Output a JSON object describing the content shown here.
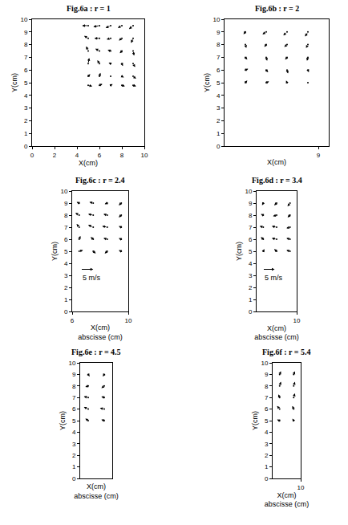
{
  "chart_data": [
    {
      "type": "quiver",
      "title": "Fig.6a : r = 1",
      "xlabel": "X(cm)",
      "ylabel": "Y(cm)",
      "color": "#000000",
      "xlim": [
        0,
        10
      ],
      "xticks": [
        0,
        2,
        4,
        6,
        8,
        10
      ],
      "ylim": [
        0,
        10
      ],
      "yticks": [
        0,
        1,
        2,
        3,
        4,
        5,
        6,
        7,
        8,
        9,
        10
      ],
      "vectors": [
        [
          5,
          9.5,
          -3,
          0
        ],
        [
          6,
          9.5,
          -3,
          -0.5
        ],
        [
          7,
          9.5,
          -2.5,
          -1
        ],
        [
          8,
          9.5,
          -2,
          -1
        ],
        [
          9,
          9.5,
          -2,
          -1.5
        ],
        [
          5,
          8.5,
          -2,
          1
        ],
        [
          6,
          8.5,
          -2.5,
          0
        ],
        [
          7,
          8.5,
          -2,
          -0.5
        ],
        [
          8,
          8.5,
          -1.5,
          -1
        ],
        [
          9,
          8.5,
          -1,
          -2
        ],
        [
          5,
          7.5,
          -1,
          2
        ],
        [
          6,
          7.5,
          -2,
          1
        ],
        [
          7,
          7.5,
          -1.5,
          0.5
        ],
        [
          8,
          7.5,
          -1,
          -1
        ],
        [
          9,
          7.5,
          0.5,
          -2
        ],
        [
          5,
          6.5,
          0.5,
          2.5
        ],
        [
          6,
          6.5,
          -1,
          1.5
        ],
        [
          7,
          6.5,
          -1,
          0.5
        ],
        [
          8,
          6.5,
          0.5,
          -1
        ],
        [
          9,
          6.5,
          1,
          -1.5
        ],
        [
          5,
          5.5,
          1,
          1
        ],
        [
          6,
          5.5,
          0.5,
          1.5
        ],
        [
          7,
          5.5,
          0.5,
          0.5
        ],
        [
          8,
          5.5,
          1,
          -0.5
        ],
        [
          9,
          5.5,
          1.5,
          -1
        ],
        [
          5,
          4.8,
          2,
          -0.5
        ],
        [
          6,
          4.8,
          1.5,
          0.5
        ],
        [
          7,
          4.8,
          1,
          0.5
        ],
        [
          8,
          4.8,
          1.5,
          -0.5
        ],
        [
          9,
          4.8,
          1.5,
          -0.5
        ]
      ]
    },
    {
      "type": "quiver",
      "title": "Fig.6b : r = 2",
      "xlabel": "X(cm)",
      "ylabel": "Y(cm)",
      "color": "#000000",
      "xlim": [
        0,
        10
      ],
      "xticks": [
        9
      ],
      "ylim": [
        0,
        10
      ],
      "yticks": [
        0,
        1,
        2,
        3,
        4,
        5,
        6,
        7,
        8,
        9,
        10
      ],
      "vectors": [
        [
          2,
          9,
          -1,
          -1
        ],
        [
          4,
          9,
          -2,
          -1
        ],
        [
          6,
          9,
          -2,
          -1.5
        ],
        [
          8,
          9,
          -1.5,
          -2
        ],
        [
          2,
          8,
          0.5,
          -1.5
        ],
        [
          4,
          8,
          -1,
          -1
        ],
        [
          6,
          8,
          -1.5,
          -1
        ],
        [
          8,
          8,
          -1,
          -1.5
        ],
        [
          2,
          7,
          1,
          -1
        ],
        [
          4,
          7,
          0.5,
          -1.5
        ],
        [
          6,
          7,
          -1,
          -1
        ],
        [
          8,
          7,
          -0.5,
          -1.5
        ],
        [
          2,
          6,
          1.5,
          0.5
        ],
        [
          4,
          6,
          1,
          -1
        ],
        [
          6,
          6,
          0.5,
          -1.5
        ],
        [
          8,
          6,
          0.5,
          -1
        ],
        [
          2,
          5,
          1,
          1
        ],
        [
          4,
          5,
          1.5,
          0.5
        ],
        [
          6,
          5,
          -0.5,
          1
        ],
        [
          8,
          5,
          0.5,
          -0.5
        ]
      ]
    },
    {
      "type": "quiver",
      "title": "Fig.6c : r = 2.4",
      "xlabel": "X(cm)",
      "xlabel_2": "abscisse (cm)",
      "ylabel": "Y(cm)",
      "color": "#000000",
      "xlim": [
        6,
        10
      ],
      "xticks": [
        6,
        10
      ],
      "ylim": [
        0,
        10
      ],
      "yticks": [
        0,
        1,
        2,
        3,
        4,
        5,
        6,
        7,
        8,
        9,
        10
      ],
      "reference_vector": {
        "value": 5,
        "label": "5 m/s"
      },
      "vectors": [
        [
          6.5,
          9,
          -1,
          0.5
        ],
        [
          7.5,
          9,
          -1.5,
          0.5
        ],
        [
          8.5,
          9,
          -1,
          -0.5
        ],
        [
          9.5,
          9,
          -1,
          -1
        ],
        [
          6.5,
          8,
          -1.5,
          1
        ],
        [
          7.5,
          8,
          -2,
          0.5
        ],
        [
          8.5,
          8,
          -1.5,
          0.5
        ],
        [
          9.5,
          8,
          -1,
          -1
        ],
        [
          6.5,
          7,
          -1,
          1.5
        ],
        [
          7.5,
          7,
          -2,
          1
        ],
        [
          8.5,
          7,
          -2,
          0.5
        ],
        [
          9.5,
          7,
          -1,
          0.5
        ],
        [
          6.5,
          6,
          0.5,
          1.5
        ],
        [
          7.5,
          6,
          -1,
          1
        ],
        [
          8.5,
          6,
          -1.5,
          0.5
        ],
        [
          9.5,
          6,
          -1,
          0.5
        ],
        [
          6.5,
          5,
          1.5,
          0.5
        ],
        [
          7.5,
          5,
          1,
          -1
        ],
        [
          8.5,
          5,
          -1,
          -1
        ],
        [
          9.5,
          5,
          -1,
          0.5
        ]
      ]
    },
    {
      "type": "quiver",
      "title": "Fig.6d : r = 3.4",
      "xlabel": "X(cm)",
      "xlabel_2": "abscisse (cm)",
      "ylabel": "Y(cm)",
      "color": "#000000",
      "xlim": [
        7,
        10
      ],
      "xticks": [
        10
      ],
      "ylim": [
        0,
        10
      ],
      "yticks": [
        0,
        1,
        2,
        3,
        4,
        5,
        6,
        7,
        8,
        9,
        10
      ],
      "reference_vector": {
        "value": 5,
        "label": "5 m/s"
      },
      "vectors": [
        [
          7.5,
          9,
          -0.5,
          -1
        ],
        [
          8.5,
          9,
          -1,
          -1
        ],
        [
          9.5,
          9,
          -1,
          -1.5
        ],
        [
          7.5,
          8,
          -1,
          0.5
        ],
        [
          8.5,
          8,
          -1.5,
          -0.5
        ],
        [
          9.5,
          8,
          -1,
          -1
        ],
        [
          7.5,
          7,
          -1.5,
          0.5
        ],
        [
          8.5,
          7,
          -2,
          0.5
        ],
        [
          9.5,
          7,
          -1.5,
          -0.5
        ],
        [
          7.5,
          6,
          -1,
          1
        ],
        [
          8.5,
          6,
          -2,
          0.5
        ],
        [
          9.5,
          6,
          -1.5,
          0.5
        ],
        [
          7.5,
          5,
          0.5,
          1
        ],
        [
          8.5,
          5,
          -1,
          1
        ],
        [
          9.5,
          5,
          -1.5,
          0.5
        ]
      ]
    },
    {
      "type": "quiver",
      "title": "Fig.6e : r = 4.5",
      "xlabel": "X(cm)",
      "xlabel_2": "abscisse (cm)",
      "ylabel": "Y(cm)",
      "color": "#000000",
      "xlim": [
        8,
        10
      ],
      "xticks": [],
      "ylim": [
        0,
        10
      ],
      "yticks": [
        0,
        1,
        2,
        3,
        4,
        5,
        6,
        7,
        8,
        9,
        10
      ],
      "vectors": [
        [
          8.5,
          9,
          0.5,
          -1
        ],
        [
          9.5,
          9,
          -0.5,
          -1
        ],
        [
          8.5,
          8,
          -1,
          -0.5
        ],
        [
          9.5,
          8,
          -1,
          -1
        ],
        [
          8.5,
          7,
          -1.5,
          0.5
        ],
        [
          9.5,
          7,
          -1,
          0.5
        ],
        [
          8.5,
          6,
          -1.5,
          1
        ],
        [
          9.5,
          6,
          -1.5,
          0.5
        ],
        [
          8.5,
          5,
          -1,
          1
        ],
        [
          9.5,
          5,
          -1,
          0.5
        ]
      ]
    },
    {
      "type": "quiver",
      "title": "Fig.6f : r = 5.4",
      "xlabel": "X(cm)",
      "xlabel_2": "abscisse (cm)",
      "ylabel": "Y(cm)",
      "color": "#000000",
      "xlim": [
        8,
        10
      ],
      "xticks": [
        10
      ],
      "ylim": [
        0,
        10
      ],
      "yticks": [
        0,
        1,
        2,
        3,
        4,
        5,
        6,
        7,
        8,
        9,
        10
      ],
      "vectors": [
        [
          8.5,
          9,
          0.5,
          1.5
        ],
        [
          9.5,
          9,
          0.5,
          1.5
        ],
        [
          8.5,
          8,
          0.5,
          2
        ],
        [
          9.5,
          8,
          0.5,
          2
        ],
        [
          8.5,
          7,
          -0.5,
          1.5
        ],
        [
          9.5,
          7,
          0.5,
          2
        ],
        [
          8.5,
          6,
          -1,
          1.5
        ],
        [
          9.5,
          6,
          -0.5,
          1.5
        ],
        [
          8.5,
          5,
          -1,
          0.5
        ],
        [
          9.5,
          5,
          -0.5,
          1
        ]
      ]
    }
  ]
}
